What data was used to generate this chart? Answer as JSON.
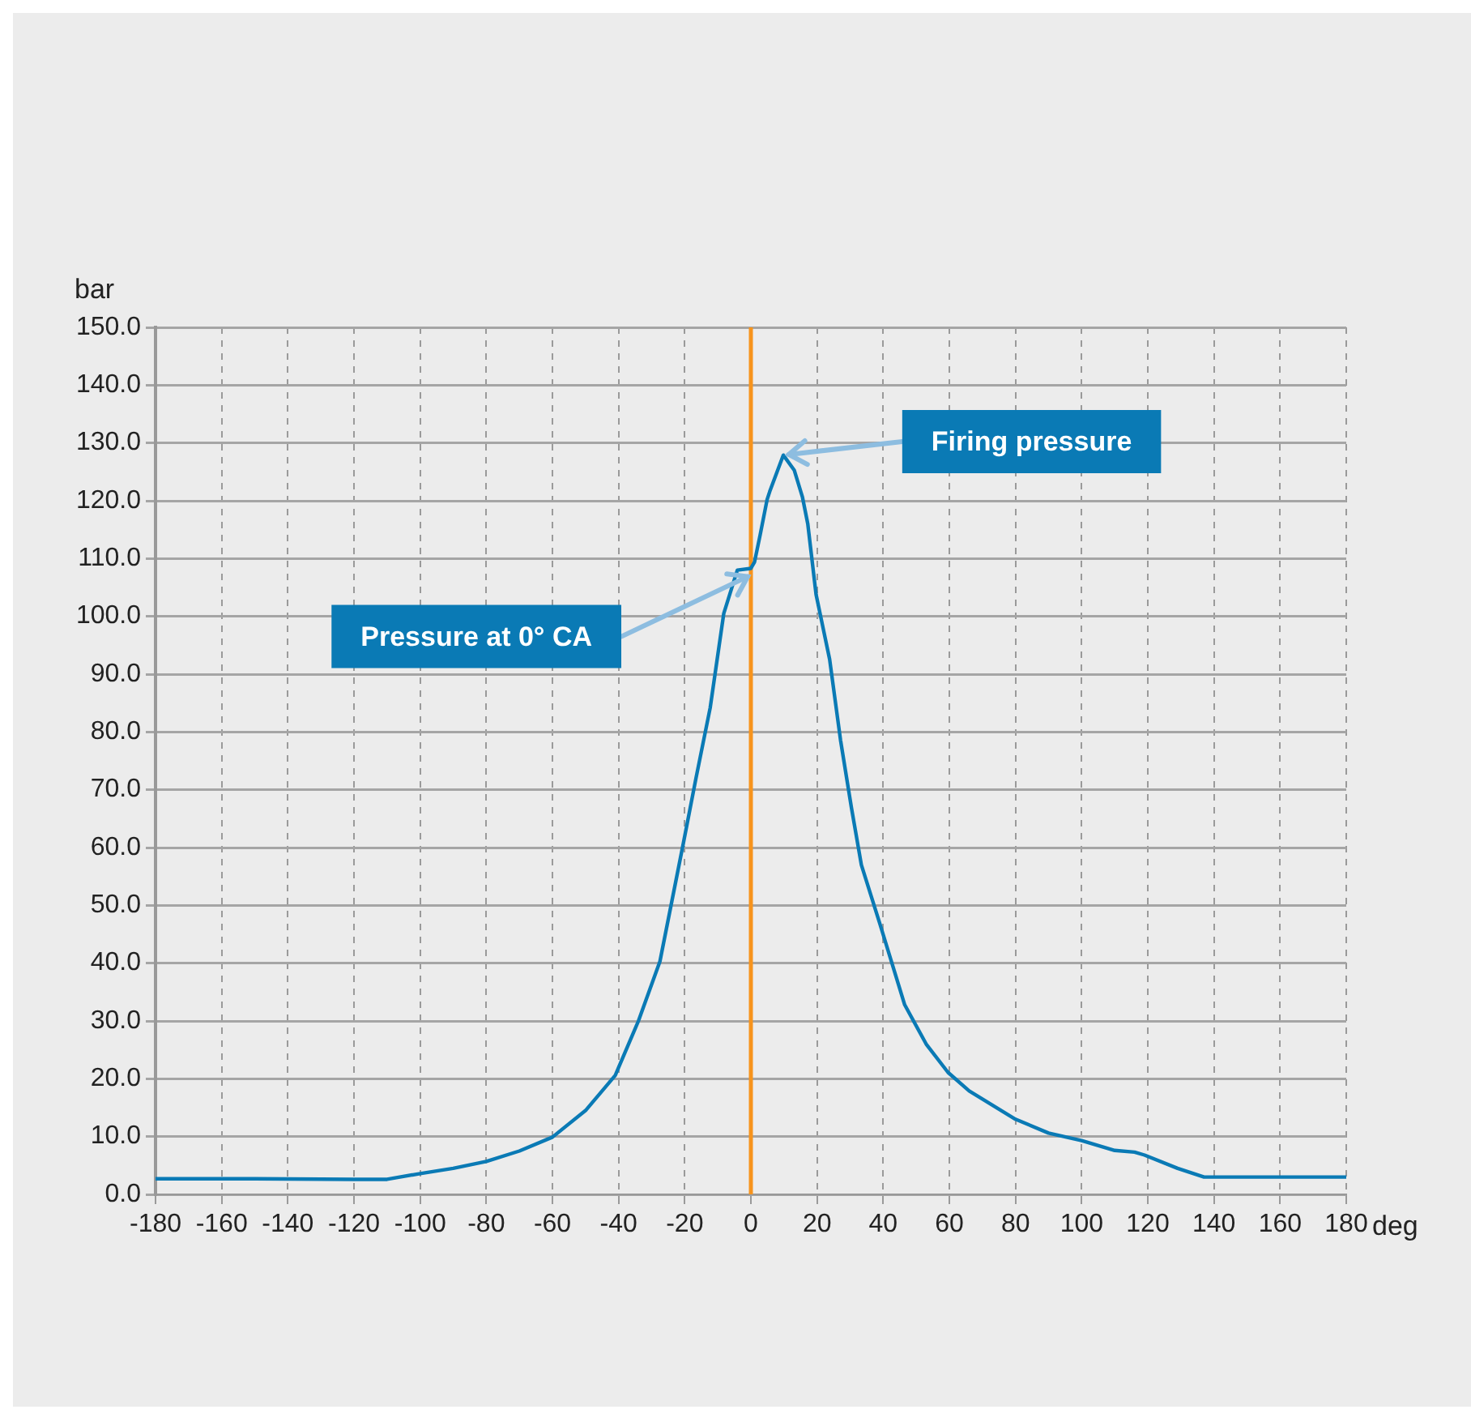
{
  "chart_data": {
    "type": "line",
    "xlabel": "deg",
    "ylabel": "bar",
    "x": [
      -180,
      -150,
      -120,
      -110,
      -100,
      -90,
      -80,
      -70,
      -60,
      -50,
      -41,
      -34,
      -27.5,
      -20.4,
      -16.6,
      -12.3,
      -8.2,
      -4.1,
      0,
      1.1,
      2.8,
      4.9,
      5.7,
      9.8,
      13.1,
      15.6,
      17.2,
      19.7,
      23.8,
      27.1,
      30.4,
      33.4,
      39,
      46.5,
      53,
      59.6,
      66,
      80,
      90,
      100,
      110,
      116,
      119,
      129,
      137,
      150,
      180
    ],
    "series": [
      {
        "color": "#0a7ab5",
        "values": [
          2.7,
          2.7,
          2.6,
          2.6,
          3.6,
          4.5,
          5.7,
          7.5,
          9.9,
          14.5,
          20.6,
          30,
          40.3,
          60.8,
          72,
          84.2,
          100.5,
          108,
          108.3,
          109.4,
          114.1,
          120.2,
          121.6,
          127.9,
          125.3,
          120.6,
          116,
          103.8,
          92.6,
          78.6,
          66.9,
          57,
          46.8,
          32.8,
          26,
          21.1,
          17.9,
          13,
          10.6,
          9.3,
          7.6,
          7.3,
          6.8,
          4.5,
          3,
          3,
          3
        ]
      }
    ],
    "xlim": [
      -180,
      180
    ],
    "xticks": [
      -180,
      -160,
      -140,
      -120,
      -100,
      -80,
      -60,
      -40,
      -20,
      0,
      20,
      40,
      60,
      80,
      100,
      120,
      140,
      160,
      180
    ],
    "ylim": [
      0,
      150
    ],
    "yticks": [
      {
        "value": 0,
        "label": "0.0"
      },
      {
        "value": 10,
        "label": "10.0"
      },
      {
        "value": 20,
        "label": "20.0"
      },
      {
        "value": 30,
        "label": "30.0"
      },
      {
        "value": 40,
        "label": "40.0"
      },
      {
        "value": 50,
        "label": "50.0"
      },
      {
        "value": 60,
        "label": "60.0"
      },
      {
        "value": 70,
        "label": "70.0"
      },
      {
        "value": 80,
        "label": "80.0"
      },
      {
        "value": 90,
        "label": "90.0"
      },
      {
        "value": 100,
        "label": "100.0"
      },
      {
        "value": 110,
        "label": "110.0"
      },
      {
        "value": 120,
        "label": "120.0"
      },
      {
        "value": 130,
        "label": "130.0"
      },
      {
        "value": 140,
        "label": "140.0"
      },
      {
        "value": 150,
        "label": "150.0"
      }
    ],
    "grid": true,
    "legend": false,
    "marker": "none",
    "line_style": "solid",
    "ref_lines": [
      {
        "axis": "x",
        "value": 0,
        "color": "#f7941d"
      }
    ],
    "annotations": [
      {
        "text": "Firing pressure",
        "x": 10,
        "y": 128
      },
      {
        "text": "Pressure at 0° CA",
        "x": 0,
        "y": 108
      }
    ]
  }
}
